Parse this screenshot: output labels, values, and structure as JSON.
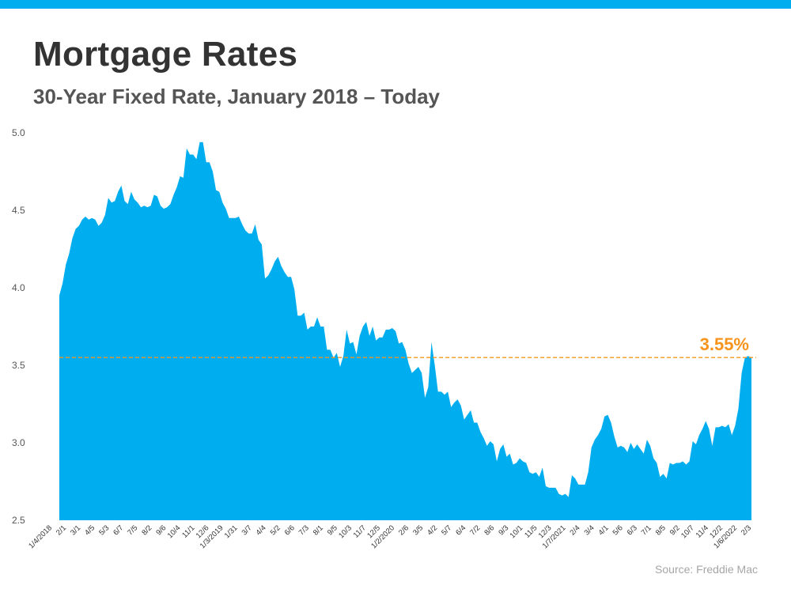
{
  "colors": {
    "accent": "#00aeef",
    "highlight": "#f7941d",
    "title": "#333333"
  },
  "header": {
    "title": "Mortgage Rates",
    "subtitle": "30-Year Fixed Rate, January 2018 – Today"
  },
  "footer": {
    "source": "Source: Freddie Mac"
  },
  "chart_data": {
    "type": "area",
    "title": "Mortgage Rates",
    "subtitle": "30-Year Fixed Rate, January 2018 – Today",
    "xlabel": "",
    "ylabel": "",
    "ylim": [
      2.5,
      5.0
    ],
    "yticks": [
      "5.0",
      "4.5",
      "4.0",
      "3.5",
      "3.0",
      "2.5"
    ],
    "grid": false,
    "legend": "none",
    "x_tick_labels": [
      "1/4/2018",
      "2/1",
      "3/1",
      "4/5",
      "5/3",
      "6/7",
      "7/5",
      "8/2",
      "9/6",
      "10/4",
      "11/1",
      "12/6",
      "1/3/2019",
      "1/31",
      "3/7",
      "4/4",
      "5/2",
      "6/6",
      "7/3",
      "8/1",
      "9/5",
      "10/3",
      "11/7",
      "12/5",
      "1/2/2020",
      "2/6",
      "3/5",
      "4/2",
      "5/7",
      "6/4",
      "7/2",
      "8/6",
      "9/3",
      "10/1",
      "11/5",
      "12/3",
      "1/7/2021",
      "2/4",
      "3/4",
      "4/1",
      "5/6",
      "6/3",
      "7/1",
      "8/5",
      "9/2",
      "10/7",
      "11/4",
      "12/2",
      "1/6/2022",
      "2/3"
    ],
    "values": [
      3.95,
      4.03,
      4.15,
      4.22,
      4.32,
      4.38,
      4.4,
      4.44,
      4.46,
      4.44,
      4.45,
      4.44,
      4.4,
      4.42,
      4.47,
      4.58,
      4.55,
      4.56,
      4.62,
      4.66,
      4.56,
      4.54,
      4.62,
      4.57,
      4.55,
      4.52,
      4.53,
      4.52,
      4.53,
      4.6,
      4.59,
      4.53,
      4.51,
      4.52,
      4.54,
      4.6,
      4.65,
      4.72,
      4.71,
      4.9,
      4.86,
      4.86,
      4.83,
      4.94,
      4.94,
      4.81,
      4.81,
      4.75,
      4.63,
      4.62,
      4.55,
      4.51,
      4.45,
      4.45,
      4.45,
      4.46,
      4.41,
      4.37,
      4.35,
      4.35,
      4.41,
      4.31,
      4.28,
      4.06,
      4.08,
      4.12,
      4.17,
      4.2,
      4.14,
      4.1,
      4.07,
      4.07,
      3.99,
      3.82,
      3.82,
      3.84,
      3.73,
      3.75,
      3.75,
      3.81,
      3.75,
      3.75,
      3.6,
      3.6,
      3.55,
      3.58,
      3.49,
      3.56,
      3.73,
      3.64,
      3.65,
      3.57,
      3.69,
      3.75,
      3.78,
      3.69,
      3.75,
      3.66,
      3.68,
      3.68,
      3.73,
      3.73,
      3.74,
      3.72,
      3.64,
      3.65,
      3.6,
      3.51,
      3.45,
      3.47,
      3.49,
      3.45,
      3.29,
      3.36,
      3.65,
      3.5,
      3.33,
      3.33,
      3.31,
      3.33,
      3.23,
      3.26,
      3.28,
      3.24,
      3.15,
      3.18,
      3.21,
      3.13,
      3.13,
      3.07,
      3.03,
      2.98,
      3.01,
      2.99,
      2.88,
      2.96,
      2.99,
      2.91,
      2.93,
      2.86,
      2.87,
      2.9,
      2.88,
      2.87,
      2.81,
      2.8,
      2.81,
      2.78,
      2.84,
      2.72,
      2.71,
      2.71,
      2.71,
      2.67,
      2.66,
      2.67,
      2.65,
      2.79,
      2.77,
      2.73,
      2.73,
      2.73,
      2.81,
      2.97,
      3.02,
      3.05,
      3.09,
      3.17,
      3.18,
      3.13,
      3.04,
      2.97,
      2.98,
      2.97,
      2.94,
      3.0,
      2.96,
      2.99,
      2.96,
      2.93,
      3.02,
      2.98,
      2.9,
      2.87,
      2.78,
      2.8,
      2.77,
      2.87,
      2.86,
      2.87,
      2.87,
      2.88,
      2.86,
      2.88,
      3.01,
      2.99,
      3.05,
      3.09,
      3.14,
      3.09,
      2.98,
      3.1,
      3.1,
      3.11,
      3.1,
      3.12,
      3.05,
      3.11,
      3.22,
      3.45,
      3.55,
      3.56,
      3.55
    ],
    "reference_line": {
      "value": 3.55,
      "label": "3.55%"
    }
  }
}
